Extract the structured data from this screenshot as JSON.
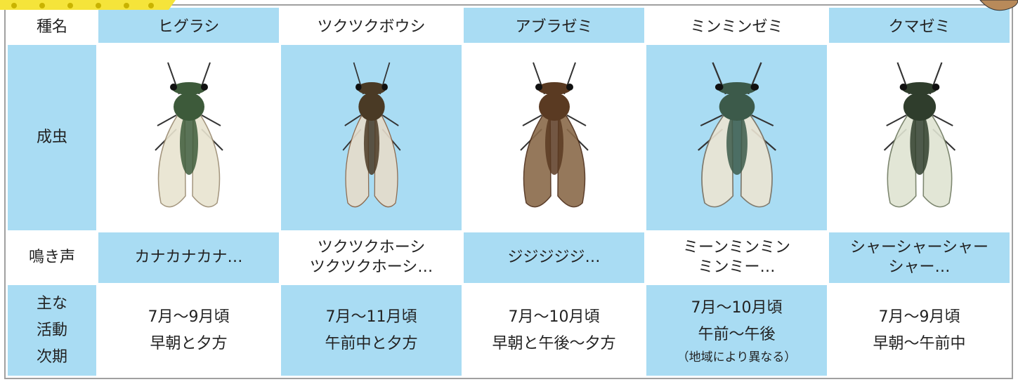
{
  "table": {
    "header": {
      "label": "種名",
      "species": [
        "ヒグラシ",
        "ツクツクボウシ",
        "アブラゼミ",
        "ミンミンゼミ",
        "クマゼミ"
      ]
    },
    "adult_label": "成虫",
    "calls": {
      "label": "鳴き声",
      "cells": [
        [
          "カナカナカナ…"
        ],
        [
          "ツクツクホーシ",
          "ツクツクホーシ…"
        ],
        [
          "ジジジジジ…"
        ],
        [
          "ミーンミンミン",
          "ミンミー…"
        ],
        [
          "シャーシャーシャー",
          "シャー…"
        ]
      ]
    },
    "activity": {
      "label": [
        "主な",
        "活動",
        "次期"
      ],
      "cells": [
        [
          "7月～9月頃",
          "早朝と夕方"
        ],
        [
          "7月～11月頃",
          "午前中と夕方"
        ],
        [
          "7月～10月頃",
          "早朝と午後～夕方"
        ],
        [
          "7月～10月頃",
          "午前～午後",
          "（地域により異なる）"
        ],
        [
          "7月～9月頃",
          "早朝～午前中"
        ]
      ]
    }
  }
}
